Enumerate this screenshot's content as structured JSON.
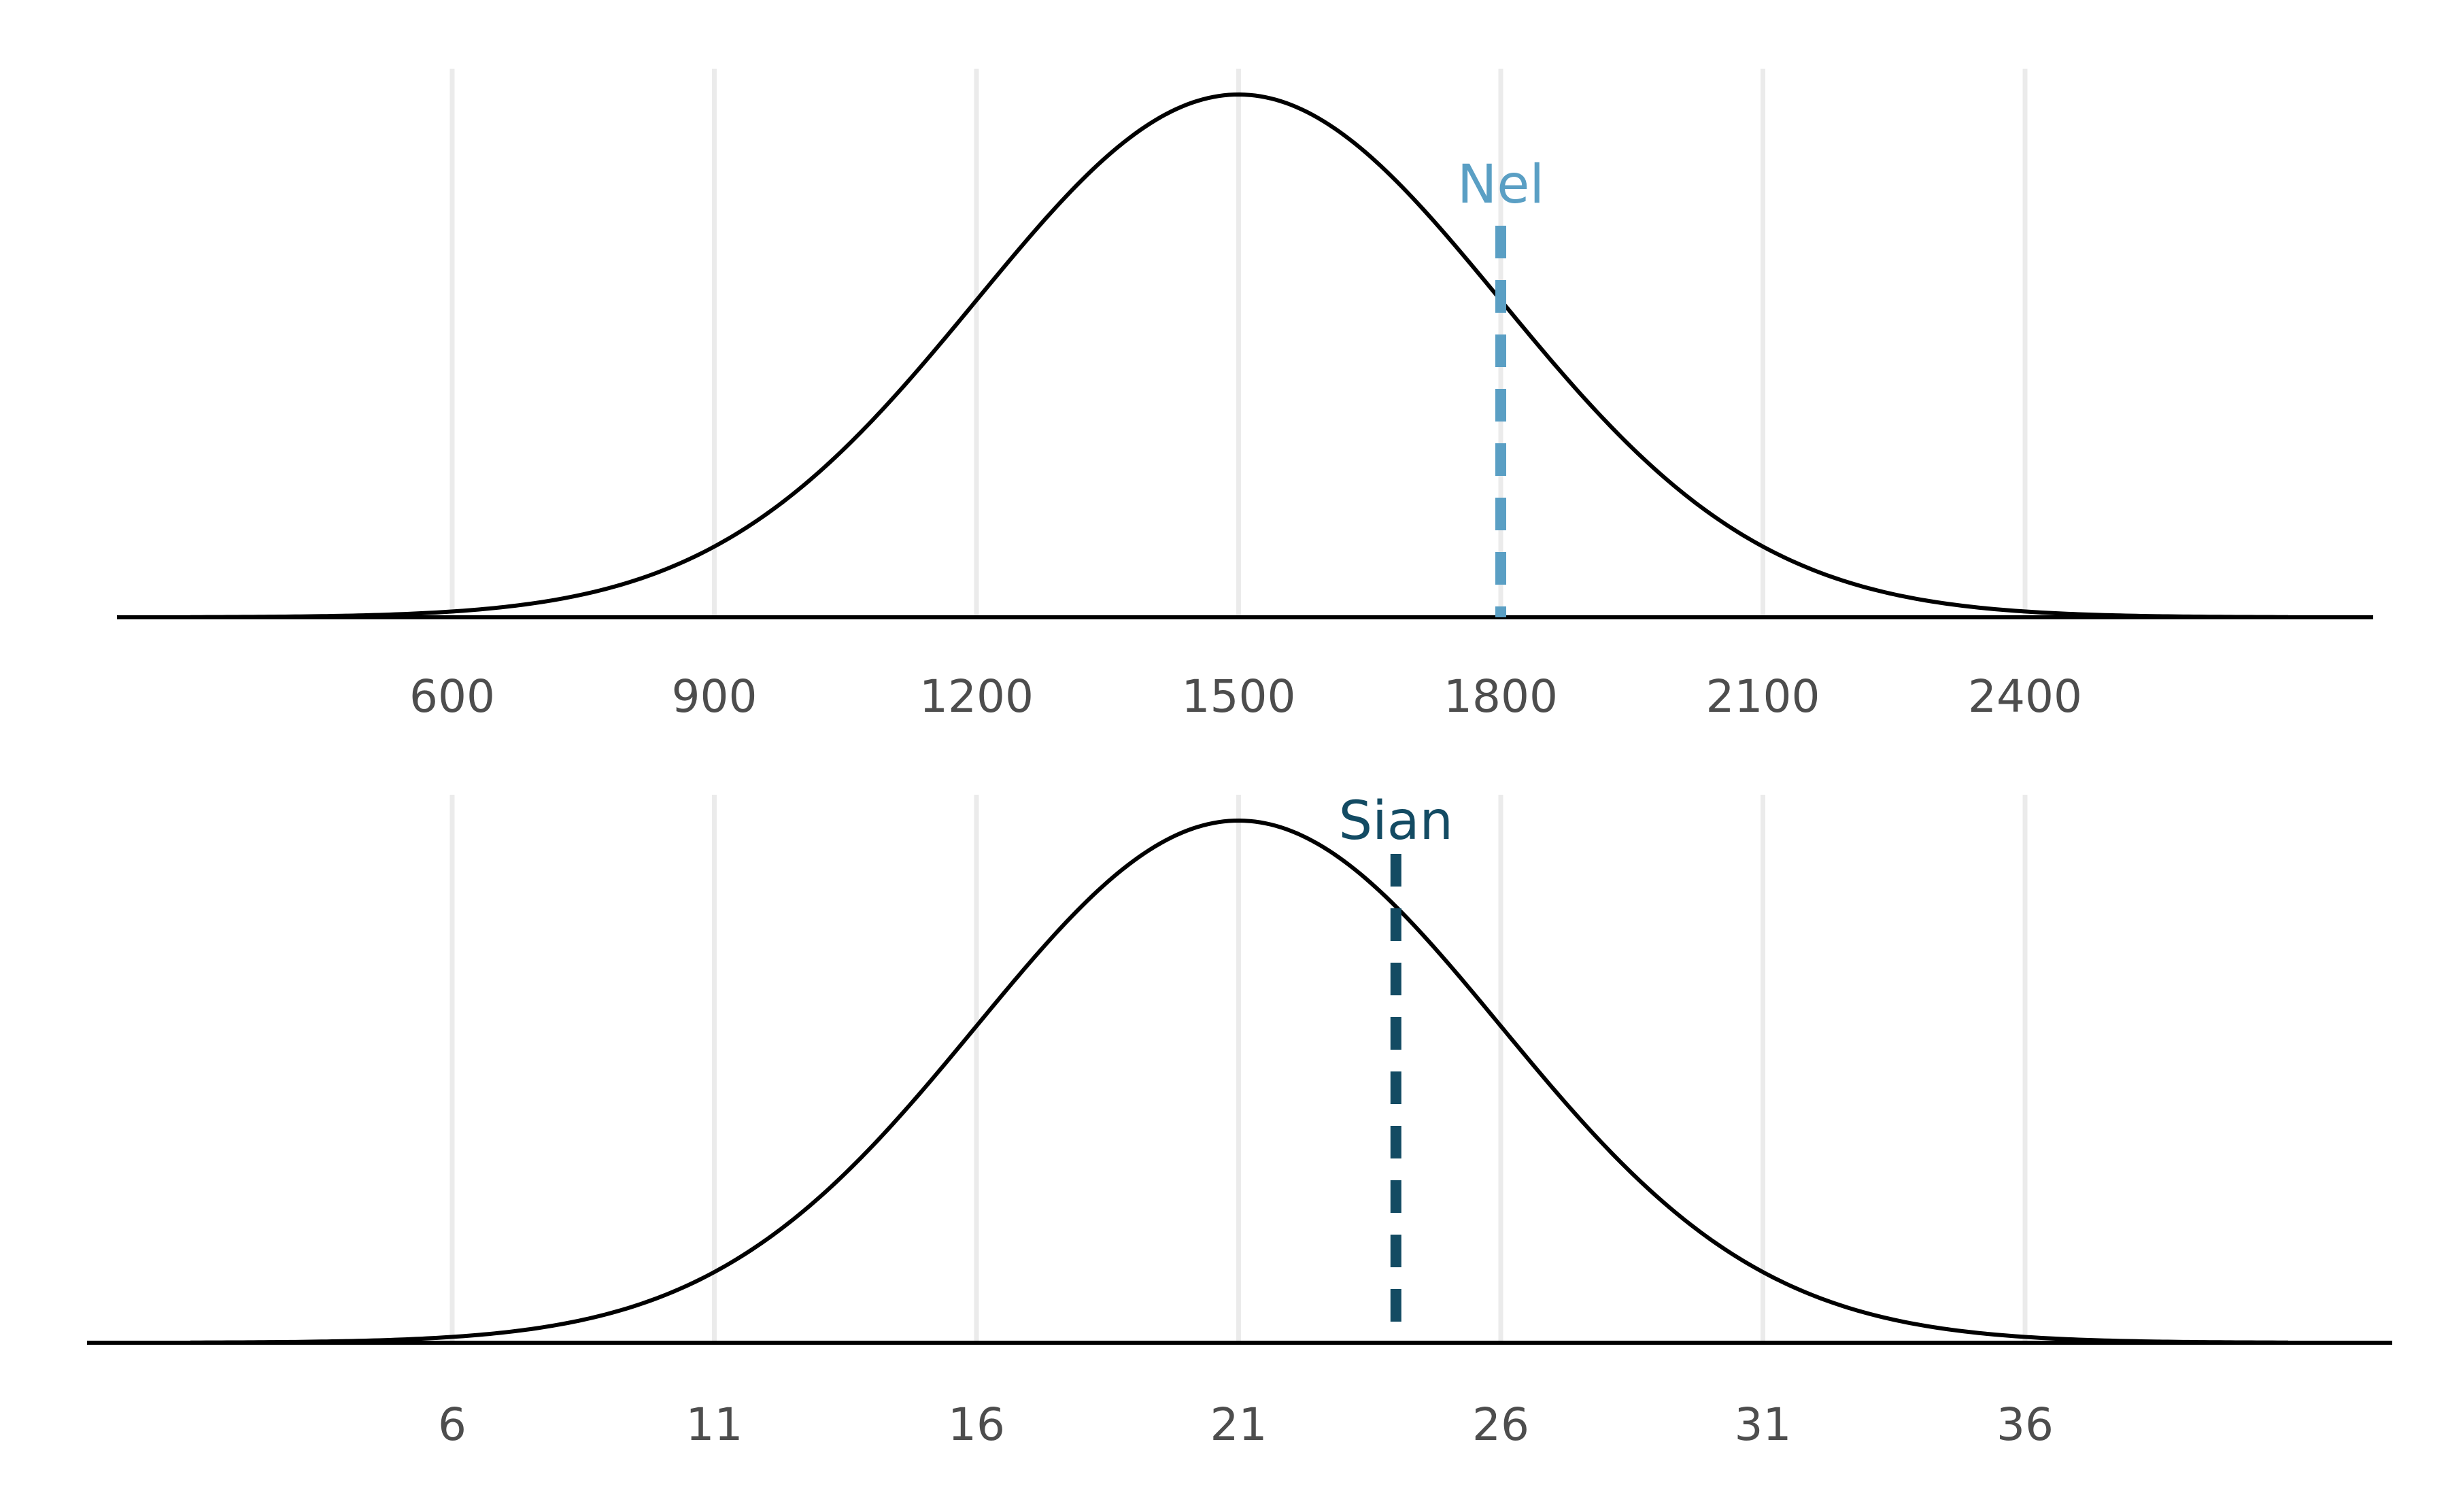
{
  "chart_data": [
    {
      "type": "line",
      "distribution": "normal",
      "mean": 1500,
      "sd": 300,
      "x_range": [
        0,
        3000
      ],
      "x_ticks": [
        600,
        900,
        1200,
        1500,
        1800,
        2100,
        2400
      ],
      "tick_labels": [
        "600",
        "900",
        "1200",
        "1500",
        "1800",
        "2100",
        "2400"
      ],
      "grid": "vertical",
      "marker": {
        "label": "Nel",
        "x": 1800,
        "color": "#5a9fc4"
      }
    },
    {
      "type": "line",
      "distribution": "normal",
      "mean": 21,
      "sd": 5,
      "x_range": [
        1,
        41
      ],
      "x_ticks": [
        6,
        11,
        16,
        21,
        26,
        31,
        36
      ],
      "tick_labels": [
        "6",
        "11",
        "16",
        "21",
        "26",
        "31",
        "36"
      ],
      "grid": "vertical",
      "marker": {
        "label": "Sian",
        "x": 24,
        "color": "#134b63"
      }
    }
  ]
}
